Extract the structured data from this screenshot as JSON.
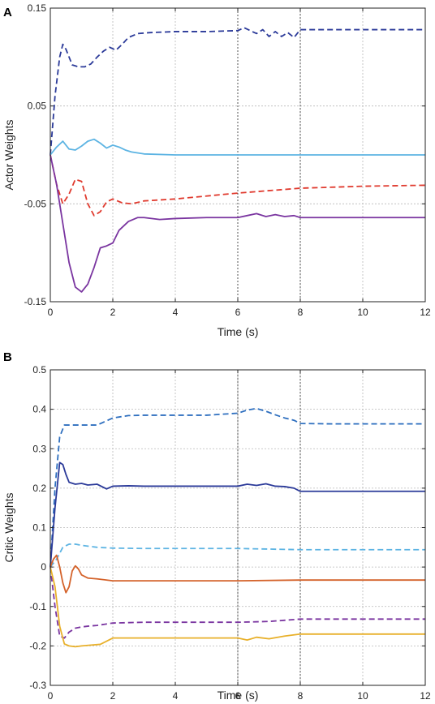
{
  "chart_data": [
    {
      "type": "line",
      "panel": "A",
      "xlabel": "Time (s)",
      "ylabel": "Actor Weights",
      "xlim": [
        0,
        12
      ],
      "ylim": [
        -0.15,
        0.15
      ],
      "xticks": [
        0,
        2,
        4,
        6,
        8,
        10,
        12
      ],
      "xtick_labels": [
        "0",
        "2",
        "4",
        "6",
        "8",
        "10",
        "12"
      ],
      "yticks": [
        -0.15,
        -0.05,
        0.05,
        0.15
      ],
      "ytick_labels": [
        "-0.15",
        "-0.05",
        "0.05",
        "0.15"
      ],
      "grid": true,
      "highlight_x": [
        6,
        8
      ],
      "series": [
        {
          "color": "#2b3a99",
          "style": "dashed",
          "x": [
            0,
            0.15,
            0.3,
            0.4,
            0.5,
            0.7,
            0.9,
            1.1,
            1.3,
            1.5,
            1.7,
            1.9,
            2.1,
            2.3,
            2.5,
            2.8,
            3.2,
            4,
            5,
            6,
            6.2,
            6.4,
            6.6,
            6.8,
            7,
            7.2,
            7.4,
            7.6,
            7.8,
            8,
            9,
            10,
            11,
            12
          ],
          "y": [
            0,
            0.06,
            0.1,
            0.113,
            0.108,
            0.092,
            0.09,
            0.09,
            0.093,
            0.1,
            0.106,
            0.11,
            0.107,
            0.113,
            0.12,
            0.124,
            0.125,
            0.126,
            0.126,
            0.127,
            0.13,
            0.127,
            0.124,
            0.128,
            0.121,
            0.126,
            0.121,
            0.125,
            0.12,
            0.128,
            0.128,
            0.128,
            0.128,
            0.128
          ]
        },
        {
          "color": "#5db4e3",
          "style": "solid",
          "x": [
            0,
            0.2,
            0.4,
            0.6,
            0.8,
            1,
            1.2,
            1.4,
            1.6,
            1.8,
            2,
            2.2,
            2.4,
            2.6,
            3,
            4,
            6,
            8,
            10,
            12
          ],
          "y": [
            0,
            0.008,
            0.014,
            0.006,
            0.005,
            0.009,
            0.014,
            0.016,
            0.012,
            0.007,
            0.01,
            0.008,
            0.005,
            0.003,
            0.001,
            0,
            0,
            0,
            0,
            0
          ]
        },
        {
          "color": "#e03a2e",
          "style": "dashed",
          "x": [
            0,
            0.2,
            0.4,
            0.6,
            0.8,
            1,
            1.2,
            1.4,
            1.6,
            1.8,
            2,
            2.3,
            2.6,
            3,
            4,
            6,
            8,
            10,
            12
          ],
          "y": [
            0,
            -0.03,
            -0.05,
            -0.04,
            -0.025,
            -0.027,
            -0.05,
            -0.062,
            -0.058,
            -0.048,
            -0.045,
            -0.049,
            -0.05,
            -0.047,
            -0.045,
            -0.039,
            -0.034,
            -0.032,
            -0.031
          ]
        },
        {
          "color": "#7a35a0",
          "style": "solid",
          "x": [
            0,
            0.2,
            0.4,
            0.6,
            0.8,
            1,
            1.2,
            1.4,
            1.6,
            1.8,
            2,
            2.2,
            2.5,
            2.8,
            3,
            3.5,
            4,
            5,
            6,
            6.3,
            6.6,
            6.9,
            7.2,
            7.5,
            7.8,
            8,
            9,
            10,
            12
          ],
          "y": [
            0,
            -0.03,
            -0.07,
            -0.11,
            -0.135,
            -0.14,
            -0.132,
            -0.115,
            -0.095,
            -0.093,
            -0.09,
            -0.077,
            -0.068,
            -0.064,
            -0.064,
            -0.066,
            -0.065,
            -0.064,
            -0.064,
            -0.062,
            -0.06,
            -0.063,
            -0.061,
            -0.063,
            -0.062,
            -0.064,
            -0.064,
            -0.064,
            -0.064
          ]
        }
      ]
    },
    {
      "type": "line",
      "panel": "B",
      "xlabel": "Time (s)",
      "ylabel": "Critic Weights",
      "xlim": [
        0,
        12
      ],
      "ylim": [
        -0.3,
        0.5
      ],
      "xticks": [
        0,
        2,
        4,
        6,
        8,
        10,
        12
      ],
      "xtick_labels": [
        "0",
        "2",
        "4",
        "6",
        "8",
        "10",
        "12"
      ],
      "yticks": [
        -0.3,
        -0.2,
        -0.1,
        0,
        0.1,
        0.2,
        0.3,
        0.4,
        0.5
      ],
      "ytick_labels": [
        "-0.3",
        "-0.2",
        "-0.1",
        "0",
        "0.1",
        "0.2",
        "0.3",
        "0.4",
        "0.5"
      ],
      "grid": true,
      "highlight_x": [
        6,
        8
      ],
      "series": [
        {
          "color": "#2e6fbf",
          "style": "dashed",
          "x": [
            0,
            0.15,
            0.3,
            0.45,
            0.6,
            0.8,
            1,
            1.5,
            2,
            2.5,
            3,
            4,
            5,
            6,
            6.3,
            6.6,
            6.9,
            7.2,
            7.5,
            7.8,
            8,
            9,
            10,
            12
          ],
          "y": [
            0,
            0.2,
            0.33,
            0.36,
            0.36,
            0.36,
            0.36,
            0.36,
            0.378,
            0.384,
            0.385,
            0.385,
            0.385,
            0.39,
            0.398,
            0.402,
            0.395,
            0.386,
            0.378,
            0.372,
            0.364,
            0.363,
            0.363,
            0.363
          ]
        },
        {
          "color": "#2b3a99",
          "style": "solid",
          "x": [
            0,
            0.15,
            0.3,
            0.4,
            0.5,
            0.6,
            0.8,
            1,
            1.2,
            1.5,
            1.8,
            2,
            2.5,
            3,
            4,
            5,
            6,
            6.3,
            6.6,
            6.9,
            7.2,
            7.5,
            7.8,
            8,
            9,
            10,
            12
          ],
          "y": [
            0,
            0.15,
            0.265,
            0.26,
            0.235,
            0.215,
            0.21,
            0.212,
            0.208,
            0.21,
            0.198,
            0.205,
            0.206,
            0.205,
            0.205,
            0.205,
            0.205,
            0.21,
            0.207,
            0.211,
            0.205,
            0.204,
            0.2,
            0.192,
            0.192,
            0.192,
            0.192
          ]
        },
        {
          "color": "#5db4e3",
          "style": "dashed",
          "x": [
            0,
            0.2,
            0.4,
            0.6,
            0.8,
            1,
            1.5,
            2,
            3,
            4,
            6,
            8,
            10,
            12
          ],
          "y": [
            0,
            0.02,
            0.05,
            0.058,
            0.058,
            0.055,
            0.05,
            0.048,
            0.047,
            0.047,
            0.047,
            0.044,
            0.044,
            0.044
          ]
        },
        {
          "color": "#d4622a",
          "style": "solid",
          "x": [
            0,
            0.1,
            0.2,
            0.3,
            0.4,
            0.5,
            0.6,
            0.7,
            0.8,
            0.9,
            1,
            1.2,
            1.5,
            2,
            3,
            4,
            6,
            8,
            10,
            12
          ],
          "y": [
            0,
            0.02,
            0.03,
            0.0,
            -0.04,
            -0.065,
            -0.05,
            -0.01,
            0.003,
            -0.005,
            -0.02,
            -0.028,
            -0.03,
            -0.035,
            -0.035,
            -0.035,
            -0.035,
            -0.033,
            -0.033,
            -0.033
          ]
        },
        {
          "color": "#7a35a0",
          "style": "dashed",
          "x": [
            0,
            0.15,
            0.3,
            0.45,
            0.6,
            0.8,
            1,
            1.2,
            1.5,
            2,
            3,
            4,
            6,
            7,
            8,
            9,
            10,
            12
          ],
          "y": [
            0,
            -0.1,
            -0.175,
            -0.18,
            -0.165,
            -0.155,
            -0.152,
            -0.15,
            -0.148,
            -0.142,
            -0.14,
            -0.14,
            -0.14,
            -0.138,
            -0.132,
            -0.132,
            -0.132,
            -0.132
          ]
        },
        {
          "color": "#e8b02a",
          "style": "solid",
          "x": [
            0,
            0.15,
            0.3,
            0.45,
            0.6,
            0.8,
            1,
            1.3,
            1.6,
            2,
            3,
            4,
            6,
            6.3,
            6.6,
            7,
            7.5,
            8,
            9,
            10,
            12
          ],
          "y": [
            0,
            -0.05,
            -0.15,
            -0.195,
            -0.2,
            -0.202,
            -0.2,
            -0.198,
            -0.196,
            -0.18,
            -0.18,
            -0.18,
            -0.18,
            -0.185,
            -0.178,
            -0.182,
            -0.175,
            -0.17,
            -0.17,
            -0.17,
            -0.17
          ]
        }
      ]
    }
  ]
}
